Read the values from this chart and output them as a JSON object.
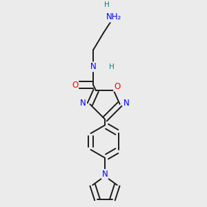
{
  "bg_color": "#ebebeb",
  "atom_colors": {
    "C": "#000000",
    "N": "#0000ff",
    "O": "#ff0000",
    "H": "#008080"
  },
  "bond_color": "#1a1a1a",
  "bond_width": 1.4,
  "font_size_atom": 8.5,
  "font_size_H": 7.5
}
